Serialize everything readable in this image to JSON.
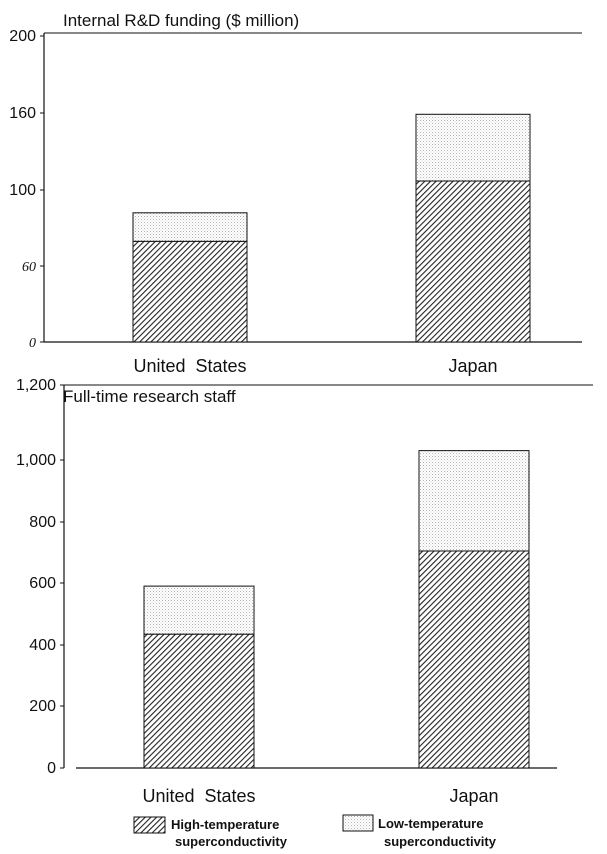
{
  "chart_data": [
    {
      "type": "bar",
      "stacked": true,
      "title": "Internal R&D funding ($ million)",
      "categories": [
        "United  States",
        "Japan"
      ],
      "y_ticks": [
        "0",
        "60",
        "100",
        "160",
        "200"
      ],
      "ylim": [
        0,
        200
      ],
      "grid": false,
      "series": [
        {
          "name": "High-temperature superconductivity",
          "values": [
            73,
            107
          ]
        },
        {
          "name": "Low-temperature superconductivity",
          "values": [
            15,
            52
          ]
        }
      ]
    },
    {
      "type": "bar",
      "stacked": true,
      "title": "Full-time  research  staff",
      "categories": [
        "United  States",
        "Japan"
      ],
      "y_ticks": [
        "0",
        "200",
        "400",
        "600",
        "800",
        "1,000",
        "1,200"
      ],
      "ylim": [
        0,
        1200
      ],
      "grid": false,
      "series": [
        {
          "name": "High-temperature superconductivity",
          "values": [
            435,
            705
          ]
        },
        {
          "name": "Low-temperature superconductivity",
          "values": [
            155,
            320
          ]
        }
      ]
    }
  ],
  "legend": {
    "placement": "bottom",
    "items": [
      {
        "line1": "High-temperature",
        "line2": "superconductivity",
        "pattern": "hatch"
      },
      {
        "line1": "Low-temperature",
        "line2": "superconductivity",
        "pattern": "dots"
      }
    ]
  },
  "colors": {
    "ink": "#111111",
    "hatch": "#222222",
    "dots": "#bfbfbf"
  }
}
